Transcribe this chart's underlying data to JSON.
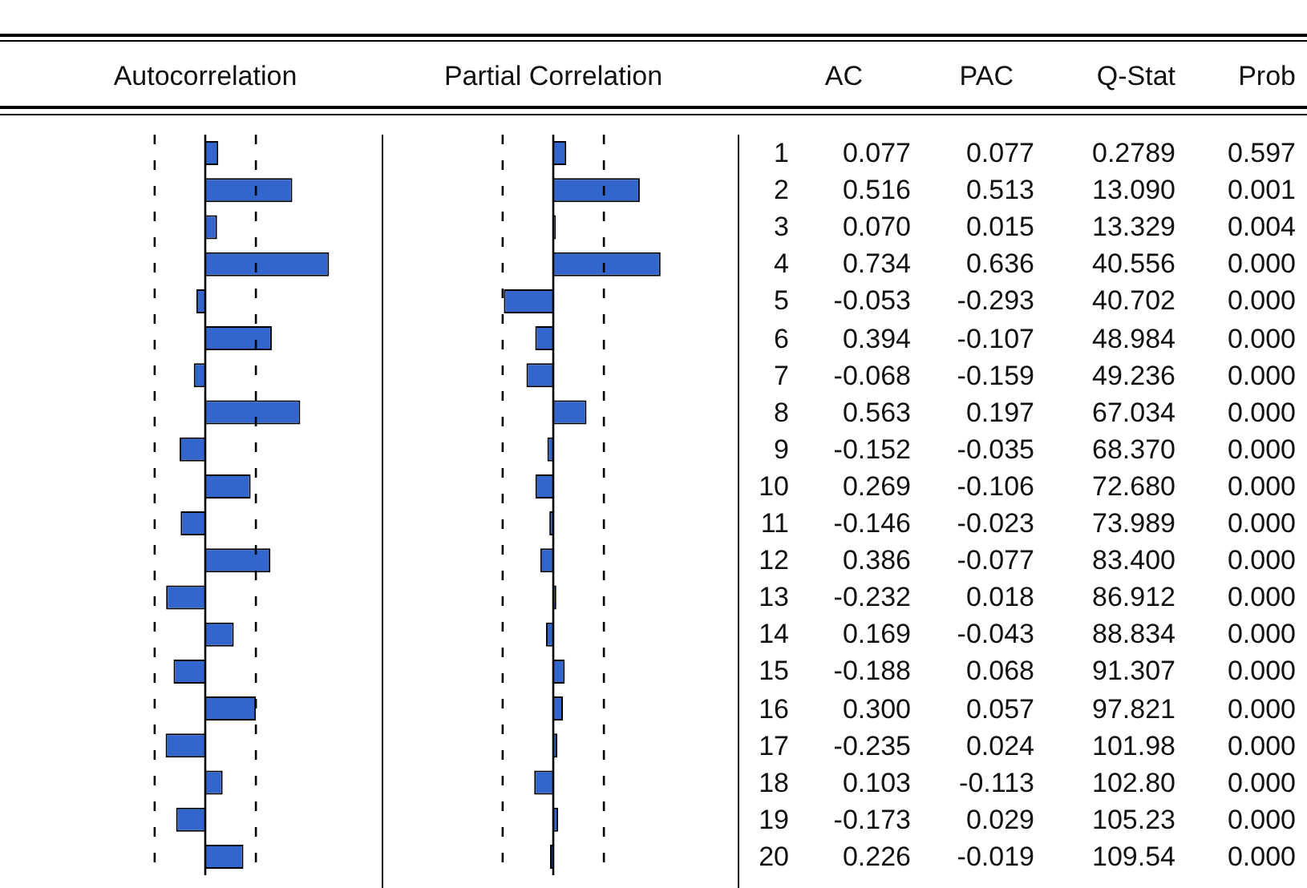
{
  "chart_data": [
    {
      "type": "bar",
      "orientation": "horizontal",
      "title": "Autocorrelation",
      "categories": [
        "1",
        "2",
        "3",
        "4",
        "5",
        "6",
        "7",
        "8",
        "9",
        "10",
        "11",
        "12",
        "13",
        "14",
        "15",
        "16",
        "17",
        "18",
        "19",
        "20"
      ],
      "tick_labels": false,
      "legend": false,
      "series": [
        {
          "name": "AC",
          "color": "#3366cc",
          "values": [
            0.077,
            0.516,
            0.07,
            0.734,
            -0.053,
            0.394,
            -0.068,
            0.563,
            -0.152,
            0.269,
            -0.146,
            0.386,
            -0.232,
            0.169,
            -0.188,
            0.3,
            -0.235,
            0.103,
            -0.173,
            0.226
          ],
          "value_labels": [
            "0.077",
            "0.516",
            "0.070",
            "0.734",
            "-0.053",
            "0.394",
            "-0.068",
            "0.563",
            "-0.152",
            "0.269",
            "-0.146",
            "0.386",
            "-0.232",
            "0.169",
            "-0.188",
            "0.300",
            "-0.235",
            "0.103",
            "-0.173",
            "0.226"
          ]
        }
      ],
      "ref_lines": [
        {
          "axis": "x",
          "value": -0.3,
          "line_style": "dashed"
        },
        {
          "axis": "x",
          "value": 0.3,
          "line_style": "dashed"
        }
      ]
    },
    {
      "type": "bar",
      "orientation": "horizontal",
      "title": "Partial Correlation",
      "categories": [
        "1",
        "2",
        "3",
        "4",
        "5",
        "6",
        "7",
        "8",
        "9",
        "10",
        "11",
        "12",
        "13",
        "14",
        "15",
        "16",
        "17",
        "18",
        "19",
        "20"
      ],
      "tick_labels": false,
      "legend": false,
      "series": [
        {
          "name": "PAC",
          "color": "#3366cc",
          "values": [
            0.077,
            0.513,
            0.015,
            0.636,
            -0.293,
            -0.107,
            -0.159,
            0.197,
            -0.035,
            -0.106,
            -0.023,
            -0.077,
            0.018,
            -0.043,
            0.068,
            0.057,
            0.024,
            -0.113,
            0.029,
            -0.019
          ],
          "value_labels": [
            "0.077",
            "0.513",
            "0.015",
            "0.636",
            "-0.293",
            "-0.107",
            "-0.159",
            "0.197",
            "-0.035",
            "-0.106",
            "-0.023",
            "-0.077",
            "0.018",
            "-0.043",
            "0.068",
            "0.057",
            "0.024",
            "-0.113",
            "0.029",
            "-0.019"
          ]
        }
      ],
      "ref_lines": [
        {
          "axis": "x",
          "value": -0.3,
          "line_style": "dashed"
        },
        {
          "axis": "x",
          "value": 0.3,
          "line_style": "dashed"
        }
      ]
    },
    {
      "type": "other",
      "annotations": [
        "Q-Stat",
        "0.2789",
        "13.090",
        "13.329",
        "40.556",
        "40.702",
        "48.984",
        "49.236",
        "67.034",
        "68.370",
        "72.680",
        "73.989",
        "83.400",
        "86.912",
        "88.834",
        "91.307",
        "97.821",
        "101.98",
        "102.80",
        "105.23",
        "109.54",
        "Prob",
        "0.597",
        "0.001",
        "0.004",
        "0.000",
        "0.000",
        "0.000",
        "0.000",
        "0.000",
        "0.000",
        "0.000",
        "0.000",
        "0.000",
        "0.000",
        "0.000",
        "0.000",
        "0.000",
        "0.000",
        "0.000",
        "0.000",
        "0.000"
      ]
    }
  ]
}
